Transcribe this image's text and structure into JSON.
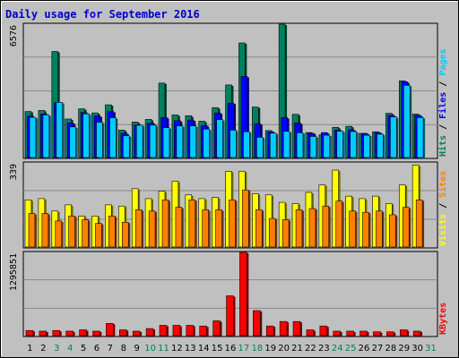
{
  "colors": {
    "background": "#c0c0c0",
    "title": "#0000cc",
    "pages": "#00ccff",
    "files": "#0000ff",
    "hits": "#008060",
    "sites": "#ff8000",
    "visits": "#ffff00",
    "kbytes": "#ff0000",
    "weekend_day": "#008060",
    "weekday": "#000000"
  },
  "chart_data": {
    "title": "Daily usage for September 2016",
    "type": "bar",
    "categories": [
      "1",
      "2",
      "3",
      "4",
      "5",
      "6",
      "7",
      "8",
      "9",
      "10",
      "11",
      "12",
      "13",
      "14",
      "15",
      "16",
      "17",
      "18",
      "19",
      "20",
      "21",
      "22",
      "23",
      "24",
      "25",
      "26",
      "27",
      "28",
      "29",
      "30",
      "31"
    ],
    "weekend_days": [
      "3",
      "4",
      "10",
      "11",
      "17",
      "18",
      "24",
      "25",
      "31"
    ],
    "panels": [
      {
        "name": "hits-files-pages",
        "max_label": "6576",
        "ylim": [
          0,
          6576
        ],
        "legend": [
          {
            "label": "Pages",
            "color": "#00ccff"
          },
          {
            "label": "Files",
            "color": "#0000ff"
          },
          {
            "label": "Hits",
            "color": "#008060"
          }
        ],
        "series": [
          {
            "name": "Hits",
            "values": [
              2270,
              2320,
              5230,
              1900,
              2400,
              2200,
              2600,
              1350,
              1750,
              1880,
              3670,
              2100,
              2060,
              1790,
              2460,
              3580,
              5650,
              2490,
              1330,
              6576,
              2130,
              1230,
              1120,
              1490,
              1540,
              1190,
              1270,
              2180,
              3780,
              2140,
              null
            ]
          },
          {
            "name": "Files",
            "values": [
              2040,
              2150,
              2700,
              1700,
              2220,
              2050,
              2270,
              1200,
              1600,
              1700,
              1970,
              1820,
              1850,
              1570,
              2200,
              2680,
              4000,
              1670,
              1260,
              1970,
              1700,
              1200,
              1230,
              1350,
              1370,
              1190,
              1230,
              2080,
              3730,
              2080,
              null
            ]
          },
          {
            "name": "Pages",
            "values": [
              1980,
              2100,
              2720,
              1510,
              2150,
              1740,
              1960,
              1070,
              1590,
              1600,
              1470,
              1560,
              1560,
              1400,
              1870,
              1350,
              1270,
              1000,
              1200,
              1290,
              1220,
              1040,
              1100,
              1300,
              1280,
              1100,
              1150,
              2000,
              3560,
              1970,
              null
            ]
          }
        ]
      },
      {
        "name": "visits-sites",
        "max_label": "339",
        "ylim": [
          0,
          339
        ],
        "legend": [
          {
            "label": "Sites",
            "color": "#ff8000"
          },
          {
            "label": "Visits",
            "color": "#ffff00"
          }
        ],
        "series": [
          {
            "name": "Visits",
            "values": [
              190,
              195,
              145,
              170,
              125,
              125,
              170,
              165,
              235,
              195,
              225,
              265,
              210,
              195,
              200,
              305,
              305,
              215,
              210,
              180,
              175,
              220,
              250,
              310,
              205,
              195,
              205,
              175,
              250,
              330,
              null
            ]
          },
          {
            "name": "Sites",
            "values": [
              135,
              135,
              105,
              125,
              110,
              95,
              125,
              100,
              150,
              145,
              190,
              160,
              190,
              150,
              150,
              190,
              230,
              150,
              115,
              110,
              150,
              155,
              165,
              185,
              145,
              140,
              145,
              130,
              160,
              190,
              null
            ]
          }
        ]
      },
      {
        "name": "kbytes",
        "max_label": "1295851",
        "ylim": [
          0,
          1295851
        ],
        "legend": [
          {
            "label": "KBytes",
            "color": "#ff0000"
          }
        ],
        "series": [
          {
            "name": "KBytes",
            "values": [
              80000,
              70000,
              80000,
              70000,
              90000,
              70000,
              190000,
              90000,
              70000,
              110000,
              160000,
              160000,
              160000,
              150000,
              230000,
              620000,
              1295851,
              390000,
              150000,
              220000,
              220000,
              90000,
              150000,
              70000,
              70000,
              70000,
              60000,
              60000,
              90000,
              70000,
              null
            ]
          }
        ]
      }
    ]
  }
}
